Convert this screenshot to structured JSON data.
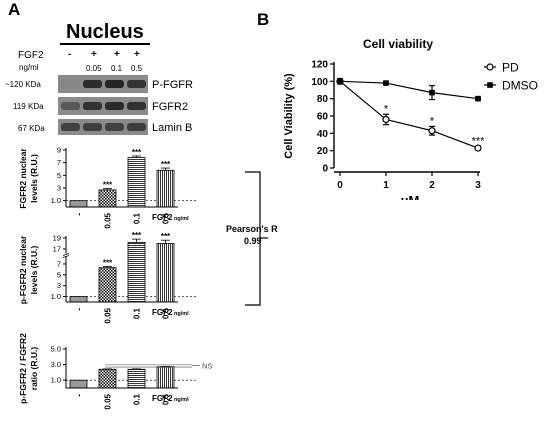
{
  "panel_a": {
    "letter": "A",
    "title": "Nucleus",
    "fgf2_row_label": "FGF2",
    "ngml_row_label": "ng/ml",
    "lane_signs": [
      "-",
      "+",
      "+",
      "+"
    ],
    "lane_doses": [
      "0.05",
      "0.1",
      "0.5"
    ],
    "blots": [
      {
        "kda": "~120 KDa",
        "protein": "P-FGFR",
        "intensity": [
          0.25,
          0.85,
          0.9,
          0.8
        ]
      },
      {
        "kda": "119 KDa",
        "protein": "FGFR2",
        "intensity": [
          0.55,
          0.8,
          0.85,
          0.8
        ]
      },
      {
        "kda": "67 KDa",
        "protein": "Lamin B",
        "intensity": [
          0.7,
          0.72,
          0.7,
          0.72
        ]
      }
    ],
    "pearson_label": "Pearson's R",
    "pearson_value": "0.99",
    "fgf2_axis_label": "FGF2",
    "fgf2_axis_unit": "ng/ml",
    "ns_label": "NS"
  },
  "panel_b": {
    "letter": "B"
  },
  "chart_data": [
    {
      "type": "bar",
      "panel": "A",
      "ylabel": "FGFR2 nuclear levels (R.U.)",
      "categories": [
        "-",
        "0.05",
        "0.1",
        "0.5"
      ],
      "values": [
        1.0,
        2.7,
        7.8,
        5.8
      ],
      "errors": [
        0,
        0.2,
        0.25,
        0.35
      ],
      "significance": [
        "",
        "***",
        "***",
        "***"
      ],
      "yticks": [
        "1.0",
        "3",
        "5",
        "7",
        "9"
      ],
      "ylim": [
        0,
        9
      ],
      "patterns": [
        "solid",
        "checker",
        "hlines",
        "vlines"
      ]
    },
    {
      "type": "bar",
      "panel": "A",
      "ylabel": "p-FGFR2 nuclear levels (R.U.)",
      "categories": [
        "-",
        "0.05",
        "0.1",
        "0.5"
      ],
      "values": [
        1.0,
        6.3,
        18.2,
        18.0
      ],
      "errors": [
        0,
        0.2,
        0.6,
        0.6
      ],
      "significance": [
        "",
        "***",
        "***",
        "***"
      ],
      "yticks": [
        "1.0",
        "3",
        "5",
        "7",
        "17",
        "19"
      ],
      "ylim": [
        0,
        19
      ],
      "axis_break": true,
      "patterns": [
        "solid",
        "checker",
        "hlines",
        "vlines"
      ]
    },
    {
      "type": "bar",
      "panel": "A",
      "ylabel": "p-FGFR2 / FGFR2 ratio (R.U.)",
      "categories": [
        "-",
        "0.05",
        "0.1",
        "0.5"
      ],
      "values": [
        1.0,
        2.4,
        2.4,
        2.7
      ],
      "errors": [
        0,
        0.05,
        0.05,
        0.08
      ],
      "significance": [
        "",
        "",
        "",
        ""
      ],
      "yticks": [
        "1.0",
        "3.0",
        "5.0"
      ],
      "ylim": [
        0,
        5
      ],
      "patterns": [
        "solid",
        "checker",
        "hlines",
        "vlines"
      ]
    },
    {
      "type": "line",
      "panel": "B",
      "title": "Cell viability",
      "xlabel": "μM",
      "ylabel": "Cell Viability (%)",
      "x": [
        0,
        1,
        2,
        3
      ],
      "xlim": [
        0,
        3
      ],
      "ylim": [
        0,
        120
      ],
      "yticks": [
        0,
        20,
        40,
        60,
        80,
        100,
        120
      ],
      "series": [
        {
          "name": "PD",
          "values": [
            100,
            56,
            43,
            23
          ],
          "errors": [
            3,
            6,
            5,
            2
          ],
          "marker": "open-circle",
          "significance": [
            "",
            "*",
            "*",
            "***"
          ]
        },
        {
          "name": "DMSO",
          "values": [
            100,
            98,
            87,
            80
          ],
          "errors": [
            2,
            1,
            8,
            1
          ],
          "marker": "filled-square",
          "significance": [
            "",
            "",
            "",
            ""
          ]
        }
      ],
      "legend_position": "top-right"
    }
  ]
}
